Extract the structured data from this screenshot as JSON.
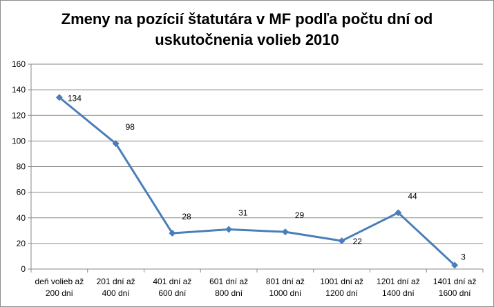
{
  "chart_data": {
    "type": "line",
    "title_lines": [
      "Zmeny na pozícií štatutára v MF podľa počtu  dní od",
      "uskutočnenia volieb 2010"
    ],
    "categories": [
      [
        "deň volieb až",
        "200 dní"
      ],
      [
        "201 dní až",
        "400 dní"
      ],
      [
        "401 dní až",
        "600 dní"
      ],
      [
        "601 dní až",
        "800 dní"
      ],
      [
        "801 dní až",
        "1000 dní"
      ],
      [
        "1001 dní až",
        "1200 dní"
      ],
      [
        "1201 dní až",
        "1400 dní"
      ],
      [
        "1401 dní až",
        "1600 dní"
      ]
    ],
    "series": [
      {
        "values": [
          134,
          98,
          28,
          31,
          29,
          22,
          44,
          3
        ]
      }
    ],
    "ylim": [
      0,
      160
    ],
    "yticks": [
      0,
      20,
      40,
      60,
      80,
      100,
      120,
      140,
      160
    ],
    "grid": true,
    "legend": "none",
    "line_color": "#4a7ebb",
    "grid_color": "#878787"
  }
}
